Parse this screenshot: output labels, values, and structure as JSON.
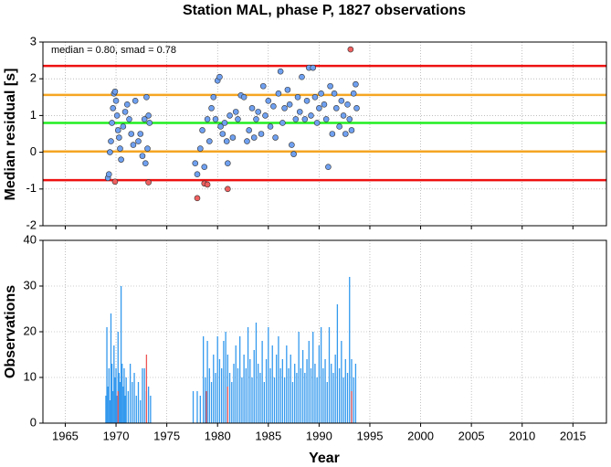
{
  "chart_data": [
    {
      "type": "scatter",
      "title": "Station MAL, phase P, 1827 observations",
      "y_label": "Median residual [s]",
      "annotation": "median = 0.80, smad = 0.78",
      "xlim": [
        1962.8,
        2018.3
      ],
      "xticks": [
        1965,
        1970,
        1975,
        1980,
        1985,
        1990,
        1995,
        2000,
        2005,
        2010,
        2015
      ],
      "ylim": [
        -2,
        3
      ],
      "yticks": [
        -2,
        -1,
        0,
        1,
        2,
        3
      ],
      "grid": true,
      "hlines": [
        {
          "value": 2.35,
          "color": "#ee1111"
        },
        {
          "value": 1.56,
          "color": "#f5a623"
        },
        {
          "value": 0.8,
          "color": "#22ee22"
        },
        {
          "value": 0.02,
          "color": "#f5a623"
        },
        {
          "value": -0.76,
          "color": "#ee1111"
        }
      ],
      "series": [
        {
          "color": "#6fa0f0",
          "x": [
            1969.2,
            1969.3,
            1969.4,
            1969.5,
            1969.6,
            1969.7,
            1969.8,
            1969.9,
            1970.0,
            1970.1,
            1970.2,
            1970.3,
            1970.4,
            1970.5,
            1970.7,
            1970.9,
            1971.1,
            1971.3,
            1971.5,
            1971.7,
            1971.9,
            1972.2,
            1972.4,
            1972.6,
            1972.8,
            1972.9,
            1973.0,
            1973.1,
            1973.2,
            1973.3,
            1977.8,
            1978.0,
            1978.3,
            1978.5,
            1978.7,
            1979.0,
            1979.2,
            1979.4,
            1979.6,
            1979.8,
            1980.0,
            1980.2,
            1980.3,
            1980.5,
            1980.7,
            1980.9,
            1981.0,
            1981.2,
            1981.5,
            1981.8,
            1982.0,
            1982.3,
            1982.6,
            1982.9,
            1983.1,
            1983.4,
            1983.6,
            1983.8,
            1984.0,
            1984.3,
            1984.5,
            1984.7,
            1985.0,
            1985.2,
            1985.5,
            1985.7,
            1986.0,
            1986.2,
            1986.4,
            1986.6,
            1986.9,
            1987.1,
            1987.3,
            1987.5,
            1987.7,
            1987.9,
            1988.1,
            1988.3,
            1988.6,
            1988.8,
            1989.0,
            1989.2,
            1989.4,
            1989.6,
            1989.8,
            1990.0,
            1990.2,
            1990.5,
            1990.7,
            1990.9,
            1991.1,
            1991.3,
            1991.5,
            1991.7,
            1992.0,
            1992.2,
            1992.4,
            1992.6,
            1992.8,
            1993.0,
            1993.2,
            1993.4,
            1993.6,
            1993.7
          ],
          "values": [
            -0.7,
            -0.6,
            0.0,
            0.3,
            0.8,
            1.2,
            1.6,
            1.65,
            1.4,
            1.0,
            0.6,
            0.4,
            0.1,
            -0.2,
            0.7,
            1.1,
            1.3,
            0.9,
            0.5,
            0.2,
            1.4,
            0.3,
            0.5,
            -0.1,
            0.9,
            -0.3,
            1.5,
            0.1,
            1.0,
            0.8,
            -0.3,
            -0.6,
            0.1,
            0.6,
            -0.4,
            0.9,
            0.3,
            1.2,
            1.5,
            0.9,
            1.95,
            2.05,
            0.7,
            0.5,
            0.8,
            0.3,
            -0.3,
            1.0,
            0.4,
            1.1,
            0.9,
            1.55,
            1.5,
            0.3,
            0.6,
            1.2,
            0.4,
            0.9,
            1.1,
            0.5,
            1.8,
            1.0,
            1.4,
            0.7,
            1.25,
            0.4,
            1.6,
            2.2,
            0.8,
            1.2,
            1.7,
            1.3,
            0.2,
            -0.05,
            0.9,
            1.5,
            1.1,
            2.05,
            0.9,
            1.4,
            2.3,
            1.0,
            2.3,
            1.5,
            0.8,
            1.2,
            1.6,
            1.3,
            0.9,
            -0.4,
            1.8,
            0.5,
            1.6,
            1.2,
            0.7,
            1.4,
            1.0,
            0.5,
            1.3,
            0.9,
            0.6,
            1.6,
            1.85,
            1.2
          ]
        },
        {
          "color": "#f06060",
          "x": [
            1969.9,
            1973.2,
            1978.0,
            1978.7,
            1979.0,
            1981.0,
            1993.1
          ],
          "values": [
            -0.8,
            -0.82,
            -1.25,
            -0.85,
            -0.88,
            -1.0,
            2.8
          ]
        }
      ]
    },
    {
      "type": "bar",
      "y_label": "Observations",
      "x_label": "Year",
      "xlim": [
        1962.8,
        2018.3
      ],
      "xticks": [
        1965,
        1970,
        1975,
        1980,
        1985,
        1990,
        1995,
        2000,
        2005,
        2010,
        2015
      ],
      "ylim": [
        0,
        40
      ],
      "yticks": [
        0,
        10,
        20,
        30,
        40
      ],
      "grid": true,
      "series": [
        {
          "color": "#3399ee",
          "x": [
            1969.0,
            1969.1,
            1969.2,
            1969.3,
            1969.4,
            1969.5,
            1969.6,
            1969.7,
            1969.8,
            1969.9,
            1970.0,
            1970.1,
            1970.2,
            1970.3,
            1970.4,
            1970.5,
            1970.6,
            1970.7,
            1970.8,
            1970.9,
            1971.0,
            1971.2,
            1971.4,
            1971.6,
            1971.8,
            1972.0,
            1972.2,
            1972.4,
            1972.6,
            1972.8,
            1973.0,
            1973.2,
            1973.4,
            1977.6,
            1978.0,
            1978.3,
            1978.6,
            1978.8,
            1979.0,
            1979.2,
            1979.4,
            1979.6,
            1979.8,
            1980.0,
            1980.2,
            1980.4,
            1980.6,
            1980.8,
            1981.0,
            1981.2,
            1981.4,
            1981.6,
            1981.8,
            1982.0,
            1982.2,
            1982.4,
            1982.6,
            1982.8,
            1983.0,
            1983.2,
            1983.4,
            1983.6,
            1983.8,
            1984.0,
            1984.2,
            1984.4,
            1984.6,
            1984.8,
            1985.0,
            1985.2,
            1985.4,
            1985.6,
            1985.8,
            1986.0,
            1986.2,
            1986.4,
            1986.6,
            1986.8,
            1987.0,
            1987.2,
            1987.4,
            1987.6,
            1987.8,
            1988.0,
            1988.2,
            1988.4,
            1988.6,
            1988.8,
            1989.0,
            1989.2,
            1989.4,
            1989.6,
            1989.8,
            1990.0,
            1990.2,
            1990.4,
            1990.6,
            1990.8,
            1991.0,
            1991.2,
            1991.4,
            1991.6,
            1991.8,
            1992.0,
            1992.2,
            1992.4,
            1992.6,
            1992.8,
            1993.0,
            1993.2,
            1993.4,
            1993.6
          ],
          "values": [
            6,
            21,
            8,
            12,
            5,
            24,
            13,
            7,
            17,
            10,
            12,
            6,
            20,
            11,
            9,
            30,
            13,
            8,
            12,
            6,
            10,
            7,
            13,
            9,
            11,
            6,
            9,
            5,
            12,
            12,
            7,
            8,
            6,
            7,
            7,
            6,
            19,
            10,
            18,
            12,
            9,
            15,
            11,
            19,
            14,
            12,
            18,
            20,
            15,
            11,
            9,
            13,
            17,
            12,
            19,
            10,
            15,
            12,
            21,
            14,
            10,
            16,
            22,
            13,
            11,
            18,
            9,
            14,
            21,
            12,
            17,
            10,
            15,
            19,
            12,
            14,
            10,
            17,
            12,
            15,
            9,
            13,
            11,
            20,
            12,
            16,
            11,
            14,
            18,
            12,
            20,
            13,
            10,
            17,
            21,
            12,
            14,
            9,
            21,
            13,
            11,
            15,
            26,
            12,
            18,
            10,
            14,
            11,
            32,
            14,
            10,
            13
          ]
        },
        {
          "color": "#ee5555",
          "x": [
            1970.2,
            1973.0,
            1978.9,
            1981.0,
            1993.2
          ],
          "values": [
            7,
            15,
            7,
            8,
            7
          ]
        }
      ]
    }
  ]
}
